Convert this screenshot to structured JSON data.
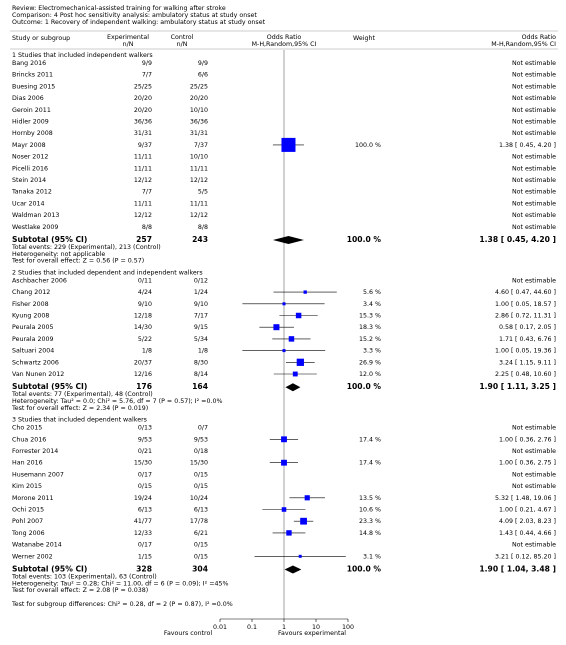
{
  "header": {
    "review": "Review: Electromechanical-assisted training for walking after stroke",
    "comparison": "Comparison: 4 Post hoc sensitivity analysis: ambulatory status at study onset",
    "outcome": "Outcome: 1 Recovery of independent walking: ambulatory status at study onset"
  },
  "columns": {
    "study": "Study or subgroup",
    "exp": "Experimental",
    "exp_n": "n/N",
    "ctrl": "Control",
    "ctrl_n": "n/N",
    "plot": "Odds Ratio",
    "plot_sub": "M-H,Random,95% CI",
    "weight": "Weight",
    "effect": "Odds Ratio",
    "effect_sub": "M-H,Random,95% CI"
  },
  "chart_data": {
    "type": "forest",
    "xscale": "log",
    "xlim": [
      0.01,
      100
    ],
    "xticks": [
      0.01,
      0.1,
      1,
      10,
      100
    ],
    "favours_left": "Favours control",
    "favours_right": "Favours experimental",
    "color": "#0000ff",
    "groups": [
      {
        "title": "1 Studies that included independent walkers",
        "studies": [
          {
            "name": "Bang 2016",
            "exp": "9/9",
            "ctrl": "9/9",
            "weight": null,
            "or": null,
            "lo": null,
            "hi": null,
            "ci_text": "Not estimable"
          },
          {
            "name": "Brincks 2011",
            "exp": "7/7",
            "ctrl": "6/6",
            "weight": null,
            "or": null,
            "lo": null,
            "hi": null,
            "ci_text": "Not estimable"
          },
          {
            "name": "Buesing 2015",
            "exp": "25/25",
            "ctrl": "25/25",
            "weight": null,
            "or": null,
            "lo": null,
            "hi": null,
            "ci_text": "Not estimable"
          },
          {
            "name": "Dias 2006",
            "exp": "20/20",
            "ctrl": "20/20",
            "weight": null,
            "or": null,
            "lo": null,
            "hi": null,
            "ci_text": "Not estimable"
          },
          {
            "name": "Geroin 2011",
            "exp": "20/20",
            "ctrl": "10/10",
            "weight": null,
            "or": null,
            "lo": null,
            "hi": null,
            "ci_text": "Not estimable"
          },
          {
            "name": "Hidler 2009",
            "exp": "36/36",
            "ctrl": "36/36",
            "weight": null,
            "or": null,
            "lo": null,
            "hi": null,
            "ci_text": "Not estimable"
          },
          {
            "name": "Hornby 2008",
            "exp": "31/31",
            "ctrl": "31/31",
            "weight": null,
            "or": null,
            "lo": null,
            "hi": null,
            "ci_text": "Not estimable"
          },
          {
            "name": "Mayr 2008",
            "exp": "9/37",
            "ctrl": "7/37",
            "weight": "100.0 %",
            "or": 1.38,
            "lo": 0.45,
            "hi": 4.2,
            "ci_text": "1.38 [ 0.45, 4.20 ]"
          },
          {
            "name": "Noser 2012",
            "exp": "11/11",
            "ctrl": "10/10",
            "weight": null,
            "or": null,
            "lo": null,
            "hi": null,
            "ci_text": "Not estimable"
          },
          {
            "name": "Picelli 2016",
            "exp": "11/11",
            "ctrl": "11/11",
            "weight": null,
            "or": null,
            "lo": null,
            "hi": null,
            "ci_text": "Not estimable"
          },
          {
            "name": "Stein 2014",
            "exp": "12/12",
            "ctrl": "12/12",
            "weight": null,
            "or": null,
            "lo": null,
            "hi": null,
            "ci_text": "Not estimable"
          },
          {
            "name": "Tanaka 2012",
            "exp": "7/7",
            "ctrl": "5/5",
            "weight": null,
            "or": null,
            "lo": null,
            "hi": null,
            "ci_text": "Not estimable"
          },
          {
            "name": "Ucar 2014",
            "exp": "11/11",
            "ctrl": "11/11",
            "weight": null,
            "or": null,
            "lo": null,
            "hi": null,
            "ci_text": "Not estimable"
          },
          {
            "name": "Waldman 2013",
            "exp": "12/12",
            "ctrl": "12/12",
            "weight": null,
            "or": null,
            "lo": null,
            "hi": null,
            "ci_text": "Not estimable"
          },
          {
            "name": "Westlake 2009",
            "exp": "8/8",
            "ctrl": "8/8",
            "weight": null,
            "or": null,
            "lo": null,
            "hi": null,
            "ci_text": "Not estimable"
          }
        ],
        "subtotal": {
          "label": "Subtotal (95% CI)",
          "exp": 257,
          "ctrl": 243,
          "weight": "100.0 %",
          "or": 1.38,
          "lo": 0.45,
          "hi": 4.2,
          "ci_text": "1.38 [ 0.45, 4.20 ]"
        },
        "notes": [
          "Total events: 229 (Experimental), 213 (Control)",
          "Heterogeneity: not applicable",
          "Test for overall effect: Z = 0.56 (P = 0.57)"
        ]
      },
      {
        "title": "2 Studies that included dependent and independent walkers",
        "studies": [
          {
            "name": "Aschbacher 2006",
            "exp": "0/11",
            "ctrl": "0/12",
            "weight": null,
            "or": null,
            "lo": null,
            "hi": null,
            "ci_text": "Not estimable"
          },
          {
            "name": "Chang 2012",
            "exp": "4/24",
            "ctrl": "1/24",
            "weight": "5.6 %",
            "or": 4.6,
            "lo": 0.47,
            "hi": 44.6,
            "ci_text": "4.60 [ 0.47, 44.60 ]"
          },
          {
            "name": "Fisher 2008",
            "exp": "9/10",
            "ctrl": "9/10",
            "weight": "3.4 %",
            "or": 1.0,
            "lo": 0.05,
            "hi": 18.57,
            "ci_text": "1.00 [ 0.05, 18.57 ]"
          },
          {
            "name": "Kyung 2008",
            "exp": "12/18",
            "ctrl": "7/17",
            "weight": "15.3 %",
            "or": 2.86,
            "lo": 0.72,
            "hi": 11.31,
            "ci_text": "2.86 [ 0.72, 11.31 ]"
          },
          {
            "name": "Peurala 2005",
            "exp": "14/30",
            "ctrl": "9/15",
            "weight": "18.3 %",
            "or": 0.58,
            "lo": 0.17,
            "hi": 2.05,
            "ci_text": "0.58 [ 0.17, 2.05 ]"
          },
          {
            "name": "Peurala 2009",
            "exp": "5/22",
            "ctrl": "5/34",
            "weight": "15.2 %",
            "or": 1.71,
            "lo": 0.43,
            "hi": 6.76,
            "ci_text": "1.71 [ 0.43, 6.76 ]"
          },
          {
            "name": "Saltuari 2004",
            "exp": "1/8",
            "ctrl": "1/8",
            "weight": "3.3 %",
            "or": 1.0,
            "lo": 0.05,
            "hi": 19.36,
            "ci_text": "1.00 [ 0.05, 19.36 ]"
          },
          {
            "name": "Schwartz 2006",
            "exp": "20/37",
            "ctrl": "8/30",
            "weight": "26.9 %",
            "or": 3.24,
            "lo": 1.15,
            "hi": 9.11,
            "ci_text": "3.24 [ 1.15, 9.11 ]"
          },
          {
            "name": "Van Nunen 2012",
            "exp": "12/16",
            "ctrl": "8/14",
            "weight": "12.0 %",
            "or": 2.25,
            "lo": 0.48,
            "hi": 10.6,
            "ci_text": "2.25 [ 0.48, 10.60 ]"
          }
        ],
        "subtotal": {
          "label": "Subtotal (95% CI)",
          "exp": 176,
          "ctrl": 164,
          "weight": "100.0 %",
          "or": 1.9,
          "lo": 1.11,
          "hi": 3.25,
          "ci_text": "1.90 [ 1.11, 3.25 ]"
        },
        "notes": [
          "Total events: 77 (Experimental), 48 (Control)",
          "Heterogeneity: Tau² = 0.0; Chi² = 5.76, df = 7 (P = 0.57); I² =0.0%",
          "Test for overall effect: Z = 2.34 (P = 0.019)"
        ]
      },
      {
        "title": "3 Studies that included dependent walkers",
        "studies": [
          {
            "name": "Cho 2015",
            "exp": "0/13",
            "ctrl": "0/7",
            "weight": null,
            "or": null,
            "lo": null,
            "hi": null,
            "ci_text": "Not estimable"
          },
          {
            "name": "Chua 2016",
            "exp": "9/53",
            "ctrl": "9/53",
            "weight": "17.4 %",
            "or": 1.0,
            "lo": 0.36,
            "hi": 2.76,
            "ci_text": "1.00 [ 0.36, 2.76 ]"
          },
          {
            "name": "Forrester 2014",
            "exp": "0/21",
            "ctrl": "0/18",
            "weight": null,
            "or": null,
            "lo": null,
            "hi": null,
            "ci_text": "Not estimable"
          },
          {
            "name": "Han 2016",
            "exp": "15/30",
            "ctrl": "15/30",
            "weight": "17.4 %",
            "or": 1.0,
            "lo": 0.36,
            "hi": 2.75,
            "ci_text": "1.00 [ 0.36, 2.75 ]"
          },
          {
            "name": "Husemann 2007",
            "exp": "0/17",
            "ctrl": "0/15",
            "weight": null,
            "or": null,
            "lo": null,
            "hi": null,
            "ci_text": "Not estimable"
          },
          {
            "name": "Kim 2015",
            "exp": "0/15",
            "ctrl": "0/15",
            "weight": null,
            "or": null,
            "lo": null,
            "hi": null,
            "ci_text": "Not estimable"
          },
          {
            "name": "Morone 2011",
            "exp": "19/24",
            "ctrl": "10/24",
            "weight": "13.5 %",
            "or": 5.32,
            "lo": 1.48,
            "hi": 19.06,
            "ci_text": "5.32 [ 1.48, 19.06 ]"
          },
          {
            "name": "Ochi 2015",
            "exp": "6/13",
            "ctrl": "6/13",
            "weight": "10.6 %",
            "or": 1.0,
            "lo": 0.21,
            "hi": 4.67,
            "ci_text": "1.00 [ 0.21, 4.67 ]"
          },
          {
            "name": "Pohl 2007",
            "exp": "41/77",
            "ctrl": "17/78",
            "weight": "23.3 %",
            "or": 4.09,
            "lo": 2.03,
            "hi": 8.23,
            "ci_text": "4.09 [ 2.03, 8.23 ]"
          },
          {
            "name": "Tong 2006",
            "exp": "12/33",
            "ctrl": "6/21",
            "weight": "14.8 %",
            "or": 1.43,
            "lo": 0.44,
            "hi": 4.66,
            "ci_text": "1.43 [ 0.44, 4.66 ]"
          },
          {
            "name": "Watanabe 2014",
            "exp": "0/17",
            "ctrl": "0/15",
            "weight": null,
            "or": null,
            "lo": null,
            "hi": null,
            "ci_text": "Not estimable"
          },
          {
            "name": "Werner 2002",
            "exp": "1/15",
            "ctrl": "0/15",
            "weight": "3.1 %",
            "or": 3.21,
            "lo": 0.12,
            "hi": 85.2,
            "ci_text": "3.21 [ 0.12, 85.20 ]"
          }
        ],
        "subtotal": {
          "label": "Subtotal (95% CI)",
          "exp": 328,
          "ctrl": 304,
          "weight": "100.0 %",
          "or": 1.9,
          "lo": 1.04,
          "hi": 3.48,
          "ci_text": "1.90 [ 1.04, 3.48 ]"
        },
        "notes": [
          "Total events: 103 (Experimental), 63 (Control)",
          "Heterogeneity: Tau² = 0.28; Chi² = 11.00, df = 6 (P = 0.09); I² =45%",
          "Test for overall effect: Z = 2.08 (P = 0.038)"
        ]
      }
    ],
    "subgroup_test": "Test for subgroup differences: Chi² = 0.28, df = 2 (P = 0.87), I² =0.0%"
  }
}
